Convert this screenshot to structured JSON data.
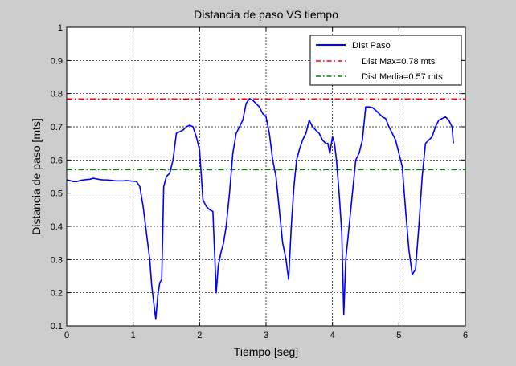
{
  "chart_data": {
    "type": "line",
    "title": "Distancia de paso VS tiempo",
    "xlabel": "Tiempo [seg]",
    "ylabel": "Distancia de paso [mts]",
    "xlim": [
      0,
      6
    ],
    "ylim": [
      0.1,
      1
    ],
    "xticks": [
      0,
      1,
      2,
      3,
      4,
      5,
      6
    ],
    "yticks": [
      0.1,
      0.2,
      0.3,
      0.4,
      0.5,
      0.6,
      0.7,
      0.8,
      0.9,
      1
    ],
    "xtick_labels": [
      "0",
      "1",
      "2",
      "3",
      "4",
      "5",
      "6"
    ],
    "ytick_labels": [
      "0.1",
      "0.2",
      "0.3",
      "0.4",
      "0.5",
      "0.6",
      "0.7",
      "0.8",
      "0.9",
      "1"
    ],
    "grid": true,
    "legend_position": "top-right",
    "series": [
      {
        "name": "DIst Paso",
        "color": "#0000ff",
        "style": "solid",
        "x": [
          0,
          0.05,
          0.1,
          0.15,
          0.2,
          0.25,
          0.3,
          0.35,
          0.4,
          0.45,
          0.5,
          0.55,
          0.6,
          0.65,
          0.7,
          0.75,
          0.8,
          0.85,
          0.9,
          0.95,
          1.0,
          1.05,
          1.1,
          1.15,
          1.2,
          1.25,
          1.28,
          1.31,
          1.34,
          1.37,
          1.4,
          1.43,
          1.46,
          1.5,
          1.55,
          1.6,
          1.65,
          1.7,
          1.75,
          1.8,
          1.85,
          1.9,
          1.95,
          2.0,
          2.05,
          2.1,
          2.15,
          2.2,
          2.23,
          2.25,
          2.28,
          2.32,
          2.36,
          2.4,
          2.45,
          2.5,
          2.55,
          2.6,
          2.65,
          2.7,
          2.75,
          2.8,
          2.85,
          2.9,
          2.95,
          3.0,
          3.05,
          3.1,
          3.15,
          3.2,
          3.25,
          3.3,
          3.34,
          3.38,
          3.42,
          3.46,
          3.5,
          3.55,
          3.6,
          3.65,
          3.7,
          3.75,
          3.8,
          3.85,
          3.9,
          3.93,
          3.96,
          4.0,
          4.03,
          4.06,
          4.1,
          4.14,
          4.17,
          4.2,
          4.25,
          4.3,
          4.35,
          4.4,
          4.45,
          4.5,
          4.55,
          4.6,
          4.65,
          4.7,
          4.75,
          4.8,
          4.85,
          4.9,
          4.95,
          5.0,
          5.05,
          5.1,
          5.15,
          5.2,
          5.25,
          5.3,
          5.35,
          5.4,
          5.45,
          5.5,
          5.55,
          5.6,
          5.65,
          5.7,
          5.75,
          5.8,
          5.82
        ],
        "y": [
          0.54,
          0.538,
          0.535,
          0.535,
          0.538,
          0.54,
          0.541,
          0.542,
          0.545,
          0.543,
          0.541,
          0.54,
          0.54,
          0.539,
          0.538,
          0.537,
          0.537,
          0.537,
          0.538,
          0.537,
          0.536,
          0.535,
          0.52,
          0.46,
          0.38,
          0.3,
          0.22,
          0.17,
          0.12,
          0.19,
          0.23,
          0.24,
          0.52,
          0.55,
          0.56,
          0.6,
          0.68,
          0.685,
          0.69,
          0.7,
          0.705,
          0.7,
          0.67,
          0.63,
          0.48,
          0.46,
          0.45,
          0.445,
          0.3,
          0.2,
          0.28,
          0.32,
          0.35,
          0.4,
          0.5,
          0.62,
          0.68,
          0.7,
          0.72,
          0.77,
          0.785,
          0.78,
          0.77,
          0.76,
          0.74,
          0.73,
          0.68,
          0.6,
          0.55,
          0.45,
          0.35,
          0.3,
          0.24,
          0.4,
          0.52,
          0.6,
          0.63,
          0.66,
          0.68,
          0.72,
          0.7,
          0.69,
          0.68,
          0.66,
          0.65,
          0.65,
          0.62,
          0.67,
          0.65,
          0.6,
          0.5,
          0.38,
          0.135,
          0.3,
          0.4,
          0.5,
          0.6,
          0.62,
          0.66,
          0.76,
          0.76,
          0.758,
          0.75,
          0.74,
          0.73,
          0.725,
          0.7,
          0.68,
          0.66,
          0.62,
          0.58,
          0.45,
          0.33,
          0.255,
          0.27,
          0.4,
          0.55,
          0.65,
          0.66,
          0.67,
          0.7,
          0.72,
          0.725,
          0.73,
          0.72,
          0.7,
          0.65
        ]
      },
      {
        "name": "Dist Max=0.78 mts",
        "color": "#ff0000",
        "style": "dashdot",
        "x": [
          0,
          6
        ],
        "y": [
          0.784,
          0.784
        ]
      },
      {
        "name": "Dist Media=0.57 mts",
        "color": "#008000",
        "style": "dashdot",
        "x": [
          0,
          6
        ],
        "y": [
          0.571,
          0.571
        ]
      }
    ]
  }
}
